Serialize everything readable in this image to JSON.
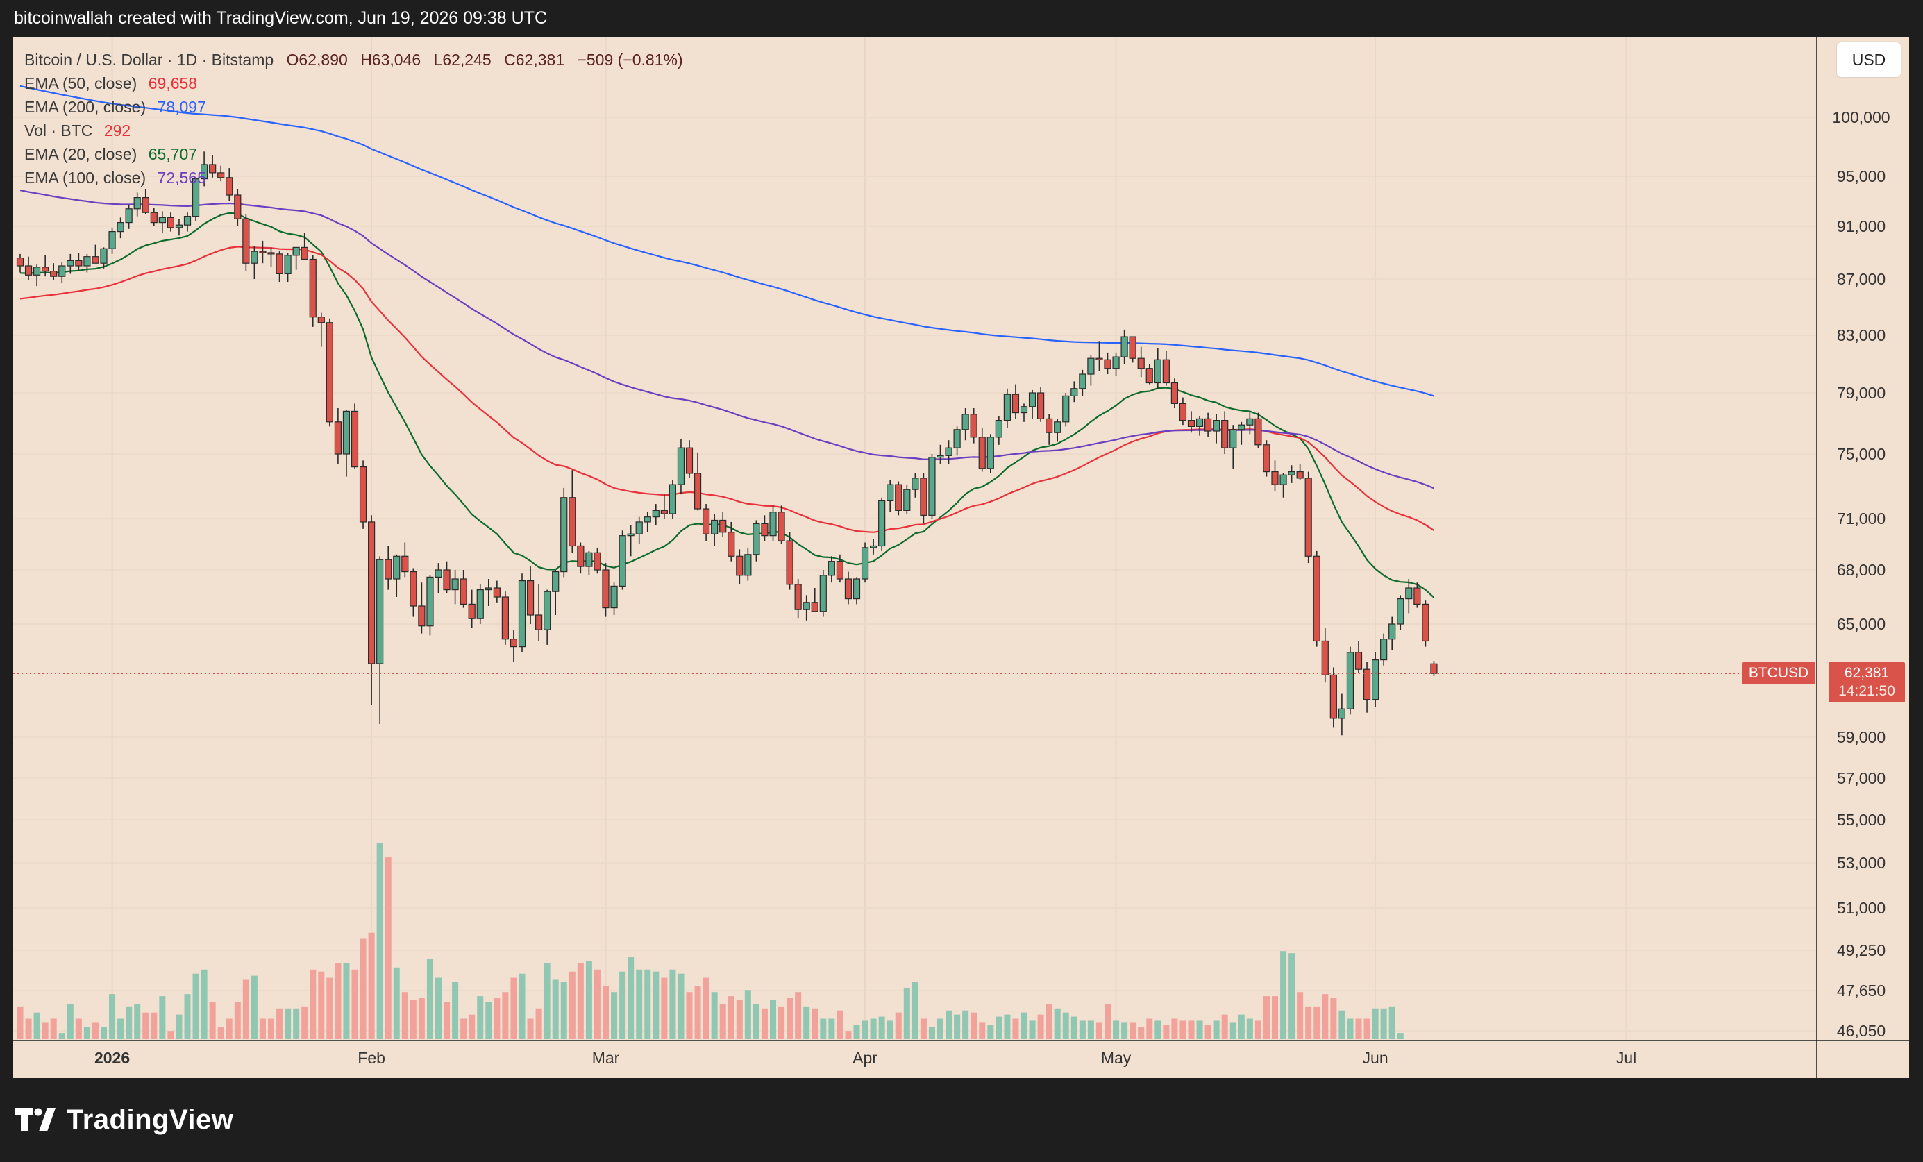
{
  "header": {
    "attribution": "bitcoinwallah created with TradingView.com, Jun 19, 2026 09:38 UTC"
  },
  "footer": {
    "logo_text": "TradingView"
  },
  "toolbar": {
    "currency_button": "USD"
  },
  "legend": {
    "symbol": "Bitcoin / U.S. Dollar · 1D · Bitstamp",
    "ohlc": {
      "open": "O62,890",
      "high": "H63,046",
      "low": "L62,245",
      "close": "C62,381",
      "change": "−509 (−0.81%)"
    },
    "indicators": [
      {
        "label": "EMA (50, close)",
        "value": "69,658",
        "color": "#e8313b"
      },
      {
        "label": "EMA (200, close)",
        "value": "78,097",
        "color": "#2962ff"
      },
      {
        "label": "Vol · BTC",
        "value": "292",
        "color": "#e8313b"
      },
      {
        "label": "EMA (20, close)",
        "value": "65,707",
        "color": "#0b6b2c"
      },
      {
        "label": "EMA (100, close)",
        "value": "72,565",
        "color": "#6a3fc1"
      }
    ]
  },
  "price_tag": {
    "symbol": "BTCUSD",
    "price": "62,381",
    "countdown": "14:21:50"
  },
  "colors": {
    "up": "#5aa88b",
    "down": "#d9534a",
    "vol_up": "#8fc7b3",
    "vol_down": "#f1a29b",
    "background": "#f2e0d0"
  },
  "chart_data": {
    "type": "candlestick",
    "title": "Bitcoin / U.S. Dollar · 1D · Bitstamp",
    "y_ticks": [
      100000,
      95000,
      91000,
      87000,
      83000,
      79000,
      75000,
      71000,
      68000,
      65000,
      59000,
      57000,
      55000,
      53000,
      51000,
      49250,
      47650,
      46050
    ],
    "y_tick_labels": [
      "100,000",
      "95,000",
      "91,000",
      "87,000",
      "83,000",
      "79,000",
      "75,000",
      "71,000",
      "68,000",
      "65,000",
      "59,000",
      "57,000",
      "55,000",
      "53,000",
      "51,000",
      "49,250",
      "47,650",
      "46,050"
    ],
    "x_ticks": [
      {
        "label": "2026",
        "index": 11,
        "bold": true
      },
      {
        "label": "Feb",
        "index": 42
      },
      {
        "label": "Mar",
        "index": 70
      },
      {
        "label": "Apr",
        "index": 101
      },
      {
        "label": "May",
        "index": 131
      },
      {
        "label": "Jun",
        "index": 162
      },
      {
        "label": "Jul",
        "index": 192
      }
    ],
    "last_price": 62381,
    "candles_ohlc": [
      [
        88600,
        88900,
        87500,
        88000
      ],
      [
        88000,
        88700,
        86900,
        87300
      ],
      [
        87300,
        88100,
        86500,
        87900
      ],
      [
        87900,
        88800,
        87200,
        87600
      ],
      [
        87600,
        88200,
        86900,
        87200
      ],
      [
        87200,
        88300,
        86700,
        88000
      ],
      [
        88000,
        88900,
        87400,
        88400
      ],
      [
        88400,
        89000,
        87600,
        88000
      ],
      [
        88000,
        88900,
        87500,
        88700
      ],
      [
        88700,
        89600,
        88200,
        88200
      ],
      [
        88200,
        89400,
        87800,
        89300
      ],
      [
        89300,
        90900,
        88900,
        90600
      ],
      [
        90600,
        91700,
        90100,
        91300
      ],
      [
        91300,
        92700,
        90800,
        92400
      ],
      [
        92400,
        93700,
        91800,
        93300
      ],
      [
        93300,
        94000,
        92000,
        92100
      ],
      [
        92100,
        92500,
        91000,
        91300
      ],
      [
        91300,
        92200,
        90500,
        91700
      ],
      [
        91700,
        92100,
        90600,
        90900
      ],
      [
        90900,
        91600,
        90300,
        91100
      ],
      [
        91100,
        92100,
        90600,
        91800
      ],
      [
        91800,
        94900,
        91400,
        94800
      ],
      [
        94800,
        97100,
        94200,
        96000
      ],
      [
        96000,
        96800,
        94900,
        95300
      ],
      [
        95300,
        95900,
        94600,
        94900
      ],
      [
        94900,
        95700,
        93000,
        93500
      ],
      [
        93500,
        94000,
        91000,
        91600
      ],
      [
        91600,
        92000,
        87600,
        88200
      ],
      [
        88200,
        89500,
        87000,
        89100
      ],
      [
        89100,
        89900,
        88200,
        89000
      ],
      [
        89000,
        89400,
        87900,
        88900
      ],
      [
        88900,
        89100,
        86800,
        87400
      ],
      [
        87400,
        89000,
        86800,
        88800
      ],
      [
        88800,
        89300,
        87700,
        89400
      ],
      [
        89400,
        90500,
        88500,
        88500
      ],
      [
        88500,
        88800,
        83600,
        84300
      ],
      [
        84300,
        84600,
        82200,
        83900
      ],
      [
        83900,
        84200,
        76800,
        77100
      ],
      [
        77100,
        78000,
        74400,
        75000
      ],
      [
        75000,
        77900,
        73600,
        77800
      ],
      [
        77800,
        78300,
        74100,
        74200
      ],
      [
        74200,
        74600,
        70400,
        70800
      ],
      [
        70800,
        71200,
        60700,
        62900
      ],
      [
        62900,
        68800,
        59700,
        68600
      ],
      [
        68600,
        69400,
        66900,
        67500
      ],
      [
        67500,
        68900,
        66500,
        68800
      ],
      [
        68800,
        69600,
        67600,
        67900
      ],
      [
        67900,
        68100,
        65400,
        66000
      ],
      [
        66000,
        67300,
        64500,
        64900
      ],
      [
        64900,
        67700,
        64400,
        67600
      ],
      [
        67600,
        68400,
        66700,
        68000
      ],
      [
        68000,
        68500,
        66700,
        66900
      ],
      [
        66900,
        68000,
        66100,
        67500
      ],
      [
        67500,
        68000,
        65900,
        66100
      ],
      [
        66100,
        66900,
        64800,
        65300
      ],
      [
        65300,
        67200,
        65000,
        66900
      ],
      [
        66900,
        67500,
        66000,
        67000
      ],
      [
        67000,
        67400,
        66200,
        66500
      ],
      [
        66500,
        66800,
        63900,
        64200
      ],
      [
        64200,
        64700,
        63000,
        63800
      ],
      [
        63800,
        67800,
        63500,
        67400
      ],
      [
        67400,
        68200,
        65000,
        65500
      ],
      [
        65500,
        67200,
        64100,
        64700
      ],
      [
        64700,
        66900,
        63900,
        66800
      ],
      [
        66800,
        68000,
        65500,
        67900
      ],
      [
        67900,
        72900,
        67600,
        72300
      ],
      [
        72300,
        74000,
        69000,
        69400
      ],
      [
        69400,
        69600,
        67800,
        68200
      ],
      [
        68200,
        69100,
        67700,
        69000
      ],
      [
        69000,
        69300,
        67800,
        68000
      ],
      [
        68000,
        68400,
        65400,
        65900
      ],
      [
        65900,
        67300,
        65500,
        67100
      ],
      [
        67100,
        70300,
        66900,
        70000
      ],
      [
        70000,
        70600,
        68800,
        70100
      ],
      [
        70100,
        71100,
        69500,
        70800
      ],
      [
        70800,
        71400,
        70200,
        71100
      ],
      [
        71100,
        71900,
        70600,
        71500
      ],
      [
        71500,
        72500,
        71000,
        71300
      ],
      [
        71300,
        73400,
        71000,
        73100
      ],
      [
        73100,
        76000,
        72500,
        75400
      ],
      [
        75400,
        75900,
        73500,
        73800
      ],
      [
        73800,
        75100,
        71500,
        71600
      ],
      [
        71600,
        71900,
        69700,
        70100
      ],
      [
        70100,
        71300,
        69400,
        70900
      ],
      [
        70900,
        71400,
        69900,
        70200
      ],
      [
        70200,
        70800,
        68500,
        68800
      ],
      [
        68800,
        69200,
        67200,
        67700
      ],
      [
        67700,
        69300,
        67400,
        68900
      ],
      [
        68900,
        70900,
        68500,
        70700
      ],
      [
        70700,
        71200,
        69700,
        70000
      ],
      [
        70000,
        71800,
        69700,
        71400
      ],
      [
        71400,
        71800,
        69500,
        69700
      ],
      [
        69700,
        70200,
        66900,
        67200
      ],
      [
        67200,
        67500,
        65300,
        65800
      ],
      [
        65800,
        66600,
        65200,
        66200
      ],
      [
        66200,
        67000,
        65700,
        65700
      ],
      [
        65700,
        68000,
        65400,
        67700
      ],
      [
        67700,
        68800,
        67300,
        68500
      ],
      [
        68500,
        68900,
        67300,
        67500
      ],
      [
        67500,
        67900,
        66100,
        66400
      ],
      [
        66400,
        67600,
        66100,
        67500
      ],
      [
        67500,
        69600,
        67300,
        69300
      ],
      [
        69300,
        69800,
        68900,
        69400
      ],
      [
        69400,
        72300,
        69100,
        72100
      ],
      [
        72100,
        73400,
        71400,
        73100
      ],
      [
        73100,
        73300,
        71200,
        71500
      ],
      [
        71500,
        73100,
        71300,
        72800
      ],
      [
        72800,
        73800,
        72300,
        73500
      ],
      [
        73500,
        73800,
        70700,
        71200
      ],
      [
        71200,
        75000,
        71000,
        74800
      ],
      [
        74800,
        75600,
        74400,
        74900
      ],
      [
        74900,
        75900,
        74400,
        75400
      ],
      [
        75400,
        76800,
        74900,
        76600
      ],
      [
        76600,
        78000,
        75900,
        77600
      ],
      [
        77600,
        78000,
        75700,
        76100
      ],
      [
        76100,
        76700,
        73900,
        74100
      ],
      [
        74100,
        76300,
        73800,
        76100
      ],
      [
        76100,
        77500,
        75600,
        77200
      ],
      [
        77200,
        79300,
        76700,
        78900
      ],
      [
        78900,
        79600,
        77300,
        77700
      ],
      [
        77700,
        78300,
        77100,
        78100
      ],
      [
        78100,
        79200,
        77300,
        79000
      ],
      [
        79000,
        79400,
        77100,
        77300
      ],
      [
        77300,
        77600,
        75600,
        76400
      ],
      [
        76400,
        77300,
        75800,
        77100
      ],
      [
        77100,
        79000,
        76800,
        78800
      ],
      [
        78800,
        79800,
        78400,
        79300
      ],
      [
        79300,
        80600,
        78800,
        80300
      ],
      [
        80300,
        81600,
        79500,
        81400
      ],
      [
        81400,
        82600,
        80500,
        81300
      ],
      [
        81300,
        81800,
        80300,
        80700
      ],
      [
        80700,
        81800,
        80200,
        81500
      ],
      [
        81500,
        83400,
        81000,
        82900
      ],
      [
        82900,
        82500,
        81100,
        81400
      ],
      [
        81400,
        82200,
        80100,
        80700
      ],
      [
        80700,
        81000,
        79600,
        79700
      ],
      [
        79700,
        82100,
        79300,
        81300
      ],
      [
        81300,
        81900,
        79500,
        79700
      ],
      [
        79700,
        80000,
        78000,
        78300
      ],
      [
        78300,
        78700,
        76900,
        77200
      ],
      [
        77200,
        77800,
        76400,
        76800
      ],
      [
        76800,
        77500,
        76200,
        77300
      ],
      [
        77300,
        77700,
        76100,
        76500
      ],
      [
        76500,
        77600,
        75700,
        77200
      ],
      [
        77200,
        77800,
        75000,
        75400
      ],
      [
        75400,
        76900,
        74100,
        76600
      ],
      [
        76600,
        77100,
        75600,
        76900
      ],
      [
        76900,
        77800,
        76300,
        77300
      ],
      [
        77300,
        77700,
        75400,
        75600
      ],
      [
        75600,
        75900,
        73600,
        73900
      ],
      [
        73900,
        74600,
        72700,
        73100
      ],
      [
        73100,
        73800,
        72300,
        73700
      ],
      [
        73700,
        74300,
        73200,
        73900
      ],
      [
        73900,
        74400,
        73400,
        73500
      ],
      [
        73500,
        73900,
        68400,
        68800
      ],
      [
        68800,
        69100,
        63800,
        64100
      ],
      [
        64100,
        64800,
        61900,
        62300
      ],
      [
        62300,
        62700,
        59500,
        60000
      ],
      [
        60000,
        61300,
        59100,
        60500
      ],
      [
        60500,
        63800,
        60200,
        63500
      ],
      [
        63500,
        64100,
        62400,
        62600
      ],
      [
        62600,
        63000,
        60300,
        61000
      ],
      [
        61000,
        63500,
        60600,
        63100
      ],
      [
        63100,
        64500,
        62800,
        64200
      ],
      [
        64200,
        65400,
        63600,
        65000
      ],
      [
        65000,
        66600,
        64700,
        66400
      ],
      [
        66400,
        67500,
        65600,
        67000
      ],
      [
        67000,
        67300,
        65900,
        66100
      ],
      [
        66100,
        66300,
        63800,
        64100
      ],
      [
        62890,
        63046,
        62245,
        62381
      ]
    ],
    "volume": [
      1600,
      1000,
      1300,
      800,
      1000,
      300,
      1700,
      1000,
      600,
      800,
      600,
      2200,
      1000,
      1600,
      1700,
      1300,
      1300,
      2100,
      400,
      1200,
      2200,
      3200,
      3400,
      1800,
      600,
      1000,
      1800,
      2900,
      3100,
      1000,
      1000,
      1500,
      1500,
      1500,
      1600,
      3400,
      3300,
      3000,
      3700,
      3700,
      3400,
      4900,
      5200,
      9600,
      8900,
      3500,
      2300,
      1900,
      2000,
      3900,
      3000,
      1800,
      2800,
      1000,
      1200,
      2100,
      1800,
      2000,
      2300,
      3000,
      3200,
      1000,
      1500,
      3700,
      2900,
      2800,
      3300,
      3700,
      3800,
      3400,
      2600,
      2300,
      3300,
      4000,
      3400,
      3400,
      3300,
      3000,
      3400,
      3200,
      2300,
      2600,
      3000,
      2300,
      1700,
      2100,
      1900,
      2400,
      1700,
      1500,
      1900,
      1600,
      2000,
      2300,
      1600,
      1500,
      1000,
      1000,
      1400,
      400,
      700,
      900,
      1000,
      1100,
      900,
      1300,
      2500,
      2800,
      1000,
      600,
      1000,
      1400,
      1200,
      1400,
      1300,
      800,
      700,
      1100,
      1200,
      1000,
      1300,
      900,
      1200,
      1700,
      1500,
      1300,
      1100,
      900,
      900,
      800,
      1700,
      900,
      800,
      800,
      600,
      1000,
      900,
      700,
      1000,
      900,
      900,
      900,
      700,
      900,
      1200,
      800,
      1200,
      1000,
      900,
      2100,
      2100,
      4300,
      4200,
      2300,
      1600,
      1600,
      2200,
      2000,
      1400,
      1000,
      1000,
      1000,
      1500,
      1500,
      1600,
      300
    ],
    "ema_series": [
      {
        "name": "EMA (20, close)",
        "color": "#0b6b2c",
        "period": 20,
        "seed": 87400
      },
      {
        "name": "EMA (50, close)",
        "color": "#e8313b",
        "period": 50,
        "seed": 85500
      },
      {
        "name": "EMA (100, close)",
        "color": "#6a3fc1",
        "period": 100,
        "seed": 94000
      },
      {
        "name": "EMA (200, close)",
        "color": "#2962ff",
        "period": 200,
        "seed": 102800
      }
    ]
  }
}
